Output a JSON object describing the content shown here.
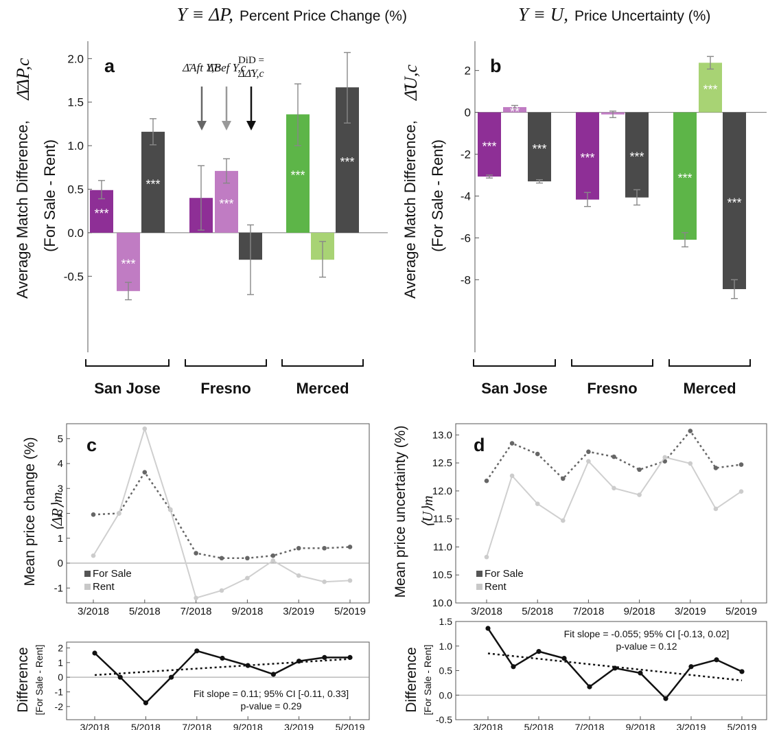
{
  "colors": {
    "sj_aft": "#8e2f96",
    "sj_bef": "#c07cc3",
    "fresno_aft": "#8e2f96",
    "fresno_bef": "#c07cc3",
    "merced_aft": "#5db548",
    "merced_bef": "#a8d374",
    "did": "#4a4a4a",
    "sale_line": "#666666",
    "rent_line": "#cfcfcf",
    "diff_line": "#111111"
  },
  "top_titles": {
    "left_math": "Y ≡ ΔP,",
    "left_text": "Percent Price Change (%)",
    "right_math": "Y ≡ U,",
    "right_text": "Price Uncertainty (%)"
  },
  "ylabels": {
    "top_line1": "Average Match Difference,",
    "top_line2": "(For Sale - Rent)",
    "left_symbol": "Δ̄ΔP,c",
    "right_symbol": "Δ̄U,c",
    "c": "Mean price change (%)",
    "c_symbol": "⟨ΔP⟩m",
    "d": "Mean price uncertainty (%)",
    "d_symbol": "⟨U⟩m",
    "diff_line1": "Difference",
    "diff_line2": "[For Sale - Rent]"
  },
  "annotations": {
    "aft": "Δ̄Aft Y,c",
    "bef": "Δ̄Bef Y,c",
    "did_line1": "DiD =",
    "did_line2": "ΔΔ̄Y,c"
  },
  "legend": {
    "sale": "For Sale",
    "rent": "Rent"
  },
  "fit_c": {
    "line1": "Fit slope = 0.11; 95% CI [-0.11, 0.33]",
    "line2": "p-value = 0.29"
  },
  "fit_d": {
    "line1": "Fit slope = -0.055; 95% CI [-0.13, 0.02]",
    "line2": "p-value = 0.12"
  },
  "chart_data": [
    {
      "panel": "a",
      "type": "bar",
      "groups": [
        "San Jose",
        "Fresno",
        "Merced"
      ],
      "ylim": [
        -0.9,
        2.2
      ],
      "yticks": [
        "-0.5",
        "0.0",
        "0.5",
        "1.0",
        "1.5",
        "2.0"
      ],
      "bars": [
        {
          "group": "San Jose",
          "role": "aft",
          "value": 0.49,
          "err_low": 0.39,
          "err_high": 0.6,
          "sig": "***"
        },
        {
          "group": "San Jose",
          "role": "bef",
          "value": -0.67,
          "err_low": -0.77,
          "err_high": -0.57,
          "sig": "***"
        },
        {
          "group": "San Jose",
          "role": "did",
          "value": 1.16,
          "err_low": 1.01,
          "err_high": 1.31,
          "sig": "***"
        },
        {
          "group": "Fresno",
          "role": "aft",
          "value": 0.4,
          "err_low": 0.03,
          "err_high": 0.77,
          "sig": ""
        },
        {
          "group": "Fresno",
          "role": "bef",
          "value": 0.71,
          "err_low": 0.57,
          "err_high": 0.85,
          "sig": "***"
        },
        {
          "group": "Fresno",
          "role": "did",
          "value": -0.31,
          "err_low": -0.71,
          "err_high": 0.09,
          "sig": ""
        },
        {
          "group": "Merced",
          "role": "aft",
          "value": 1.36,
          "err_low": 1.0,
          "err_high": 1.71,
          "sig": "***"
        },
        {
          "group": "Merced",
          "role": "bef",
          "value": -0.31,
          "err_low": -0.51,
          "err_high": -0.1,
          "sig": ""
        },
        {
          "group": "Merced",
          "role": "did",
          "value": 1.67,
          "err_low": 1.26,
          "err_high": 2.07,
          "sig": "***"
        }
      ]
    },
    {
      "panel": "b",
      "type": "bar",
      "groups": [
        "San Jose",
        "Fresno",
        "Merced"
      ],
      "ylim": [
        -9.5,
        3.4
      ],
      "yticks": [
        "-8",
        "-6",
        "-4",
        "-2",
        "0",
        "2"
      ],
      "bars": [
        {
          "group": "San Jose",
          "role": "aft",
          "value": -3.07,
          "err_low": -3.14,
          "err_high": -3.0,
          "sig": "***"
        },
        {
          "group": "San Jose",
          "role": "bef",
          "value": 0.25,
          "err_low": 0.17,
          "err_high": 0.33,
          "sig": "**"
        },
        {
          "group": "San Jose",
          "role": "did",
          "value": -3.3,
          "err_low": -3.38,
          "err_high": -3.22,
          "sig": "***"
        },
        {
          "group": "Fresno",
          "role": "aft",
          "value": -4.17,
          "err_low": -4.5,
          "err_high": -3.83,
          "sig": "***"
        },
        {
          "group": "Fresno",
          "role": "bef",
          "value": -0.1,
          "err_low": -0.25,
          "err_high": 0.06,
          "sig": ""
        },
        {
          "group": "Fresno",
          "role": "did",
          "value": -4.07,
          "err_low": -4.43,
          "err_high": -3.7,
          "sig": "***"
        },
        {
          "group": "Merced",
          "role": "aft",
          "value": -6.09,
          "err_low": -6.43,
          "err_high": -5.75,
          "sig": "***"
        },
        {
          "group": "Merced",
          "role": "bef",
          "value": 2.37,
          "err_low": 2.07,
          "err_high": 2.67,
          "sig": "***"
        },
        {
          "group": "Merced",
          "role": "did",
          "value": -8.45,
          "err_low": -8.9,
          "err_high": -8.0,
          "sig": "***"
        }
      ]
    },
    {
      "panel": "c",
      "type": "line",
      "xticks": [
        "3/2018",
        "5/2018",
        "7/2018",
        "9/2018",
        "3/2019",
        "5/2019"
      ],
      "xtick_index": [
        0,
        2,
        4,
        6,
        8,
        10
      ],
      "ylim": [
        -1.6,
        5.6
      ],
      "yticks": [
        "-1",
        "0",
        "1",
        "2",
        "3",
        "4",
        "5"
      ],
      "series": [
        {
          "name": "For Sale",
          "values": [
            1.95,
            2.0,
            3.65,
            2.15,
            0.4,
            0.2,
            0.2,
            0.3,
            0.6,
            0.6,
            0.65
          ]
        },
        {
          "name": "Rent",
          "values": [
            0.3,
            2.0,
            5.4,
            2.15,
            -1.4,
            -1.1,
            -0.6,
            0.1,
            -0.5,
            -0.75,
            -0.7
          ]
        }
      ]
    },
    {
      "panel": "d",
      "type": "line",
      "xticks": [
        "3/2018",
        "5/2018",
        "7/2018",
        "9/2018",
        "3/2019",
        "5/2019"
      ],
      "xtick_index": [
        0,
        2,
        4,
        6,
        8,
        10
      ],
      "ylim": [
        10.0,
        13.2
      ],
      "yticks": [
        "10.0",
        "10.5",
        "11.0",
        "11.5",
        "12.0",
        "12.5",
        "13.0"
      ],
      "series": [
        {
          "name": "For Sale",
          "values": [
            12.18,
            12.85,
            12.66,
            12.22,
            12.7,
            12.61,
            12.38,
            12.53,
            13.07,
            12.41,
            12.47
          ]
        },
        {
          "name": "Rent",
          "values": [
            10.82,
            12.27,
            11.77,
            11.47,
            12.53,
            12.05,
            11.93,
            12.6,
            12.49,
            11.68,
            11.99
          ]
        }
      ]
    },
    {
      "panel": "c-difference",
      "type": "line",
      "xticks": [
        "3/2018",
        "5/2018",
        "7/2018",
        "9/2018",
        "3/2019",
        "5/2019"
      ],
      "xtick_index": [
        0,
        2,
        4,
        6,
        8,
        10
      ],
      "ylim": [
        -2.9,
        2.4
      ],
      "yticks": [
        "-2",
        "-1",
        "0",
        "1",
        "2"
      ],
      "series": [
        {
          "values": [
            1.65,
            0.0,
            -1.75,
            0.0,
            1.8,
            1.3,
            0.8,
            0.2,
            1.1,
            1.35,
            1.35
          ]
        }
      ],
      "fit": {
        "start": 0.15,
        "end": 1.25
      }
    },
    {
      "panel": "d-difference",
      "type": "line",
      "xticks": [
        "3/2018",
        "5/2018",
        "7/2018",
        "9/2018",
        "3/2019",
        "5/2019"
      ],
      "xtick_index": [
        0,
        2,
        4,
        6,
        8,
        10
      ],
      "ylim": [
        -0.5,
        1.5
      ],
      "yticks": [
        "-0.5",
        "0.0",
        "0.5",
        "1.0",
        "1.5"
      ],
      "series": [
        {
          "values": [
            1.36,
            0.58,
            0.89,
            0.75,
            0.17,
            0.55,
            0.45,
            -0.07,
            0.58,
            0.72,
            0.48
          ]
        }
      ],
      "fit": {
        "start": 0.85,
        "end": 0.3
      }
    }
  ]
}
